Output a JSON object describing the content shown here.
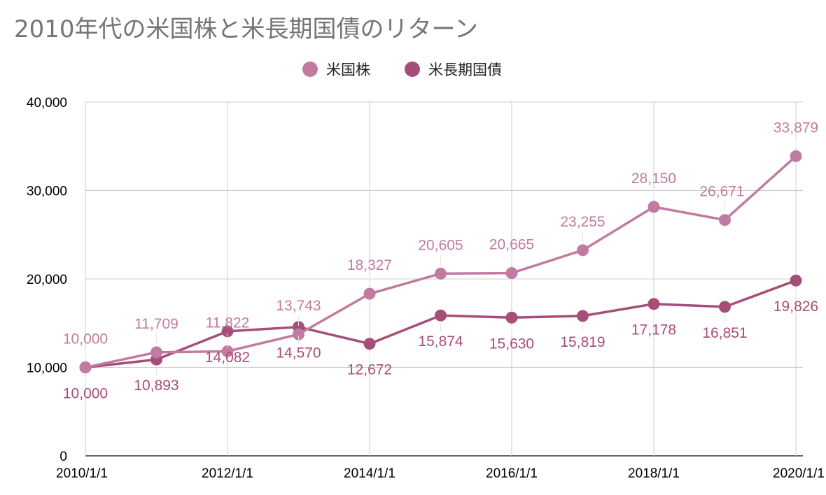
{
  "chart_data": {
    "type": "line",
    "title": "2010年代の米国株と米長期国債のリターン",
    "x": [
      "2010/1/1",
      "2011/1/1",
      "2012/1/1",
      "2013/1/1",
      "2014/1/1",
      "2015/1/1",
      "2016/1/1",
      "2017/1/1",
      "2018/1/1",
      "2019/1/1",
      "2020/1/1"
    ],
    "x_tick_labels": [
      "2010/1/1",
      "2012/1/1",
      "2014/1/1",
      "2016/1/1",
      "2018/1/1",
      "2020/1/1"
    ],
    "y_tick_labels": [
      "0",
      "10,000",
      "20,000",
      "30,000",
      "40,000"
    ],
    "ylim": [
      0,
      40000
    ],
    "grid": true,
    "legend_position": "top",
    "series": [
      {
        "name": "米国株",
        "color": "#c27ba0",
        "values": [
          10000,
          11709,
          11822,
          13743,
          18327,
          20605,
          20665,
          23255,
          28150,
          26671,
          33879
        ],
        "labels": [
          "10,000",
          "11,709",
          "11,822",
          "13,743",
          "18,327",
          "20,605",
          "20,665",
          "23,255",
          "28,150",
          "26,671",
          "33,879"
        ]
      },
      {
        "name": "米長期国債",
        "color": "#a64d79",
        "values": [
          10000,
          10893,
          14082,
          14570,
          12672,
          15874,
          15630,
          15819,
          17178,
          16851,
          19826
        ],
        "labels": [
          "10,000",
          "10,893",
          "14,082",
          "14,570",
          "12,672",
          "15,874",
          "15,630",
          "15,819",
          "17,178",
          "16,851",
          "19,826"
        ]
      }
    ]
  }
}
